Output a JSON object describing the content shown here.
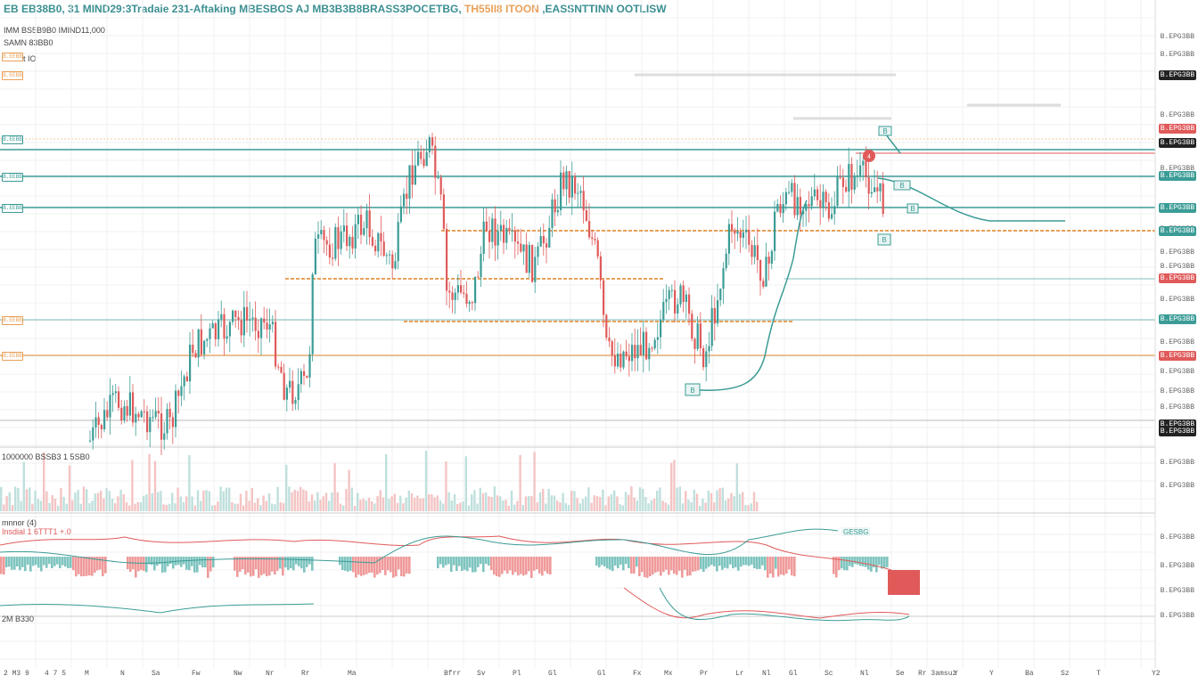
{
  "header": {
    "title_main": "EB EB38B0, 31 MIND29:3Tradaie 231-Aftaking MBESBOS AJ MB3B3B8BRASS3POCETBG, ",
    "title_accent": "TH55II8 ITOON ",
    "title_end": ",EASSNTTINN OOTLISW",
    "line2": "IMM BS5B9B0 IMIND11,000",
    "line3": "SAMN 83BB0",
    "line4": "Invent IO"
  },
  "price_axis": {
    "labels": [
      "B.EPG3BB",
      "B.EPG3BB",
      "B.EPG3BB",
      "B.EPG3BB",
      "B.EPG3BB",
      "B.EPG3BB",
      "B.EPG3BB",
      "B.EPG3BB",
      "B.EPG3BB",
      "B.EPG3BB",
      "B.EPG3BB",
      "B.EPG3BB",
      "B.EPG3BB",
      "B.EPG3BB",
      "B.EPG3BB"
    ],
    "tags": [
      {
        "text": "B.EPG3BB",
        "color": "#222222"
      },
      {
        "text": "B.EPG3BB",
        "color": "#e05a5a"
      },
      {
        "text": "B.EPG3BB",
        "color": "#222222"
      },
      {
        "text": "B.EPG3BB",
        "color": "#3b9c96"
      },
      {
        "text": "B.EPG3BB",
        "color": "#3b9c96"
      },
      {
        "text": "B.EPG3BB",
        "color": "#3b9c96"
      },
      {
        "text": "B.EPG3BB",
        "color": "#e05a5a"
      },
      {
        "text": "B.EPG3BB",
        "color": "#222222"
      }
    ]
  },
  "left_tags": [
    {
      "text": "B.EEBB",
      "color": "#e8a15a"
    },
    {
      "text": "B.EEBB",
      "color": "#e8a15a"
    },
    {
      "text": "B.EEBB",
      "color": "#3b9c96"
    },
    {
      "text": "B.EEBB",
      "color": "#3b9c96"
    },
    {
      "text": "B.EEBB",
      "color": "#3b9c96"
    },
    {
      "text": "B.EEBB",
      "color": "#e8a15a"
    },
    {
      "text": "B.EEBB",
      "color": "#e8a15a"
    }
  ],
  "volume_pane": {
    "label": "1000000 BSSB3 1 5SB0",
    "axis": [
      "1.B0BB5B",
      "1.B0BB5B"
    ]
  },
  "oscillator_pane": {
    "label1": "mnnor (4)",
    "label2": "Insdial 1 6TTT1 +.0",
    "bottom_label": "2M B330",
    "axis": [
      "1.B0BB5B",
      "1.B0BB5B",
      "1.B0BB5B",
      "1.B0BB5B"
    ],
    "overlay_tag": "GESBG"
  },
  "time_axis": [
    "2 M3 9",
    "4 7 5",
    "M",
    "N",
    "Sa",
    "Fw",
    "Nw",
    "Nr",
    "Rr",
    "Ma",
    "Bfrr",
    "Sv",
    "Pl",
    "Gl",
    "Gl",
    "Fx",
    "Mx",
    "Pr",
    "Lr",
    "Nl",
    "Gl",
    "Sc",
    "Nl",
    "Se",
    "Rr 3amsuz",
    "Y",
    "Y",
    "Ba",
    "Sz",
    "T",
    "Y2"
  ],
  "colors": {
    "bull": "#3b9c96",
    "bear": "#e05a5a",
    "orange": "#e8a15a",
    "grid": "#f0f0f0"
  },
  "markers": {
    "m1": "B",
    "m2": "B",
    "m3": "B",
    "m4": "B",
    "m5": "B",
    "m6": "4"
  }
}
